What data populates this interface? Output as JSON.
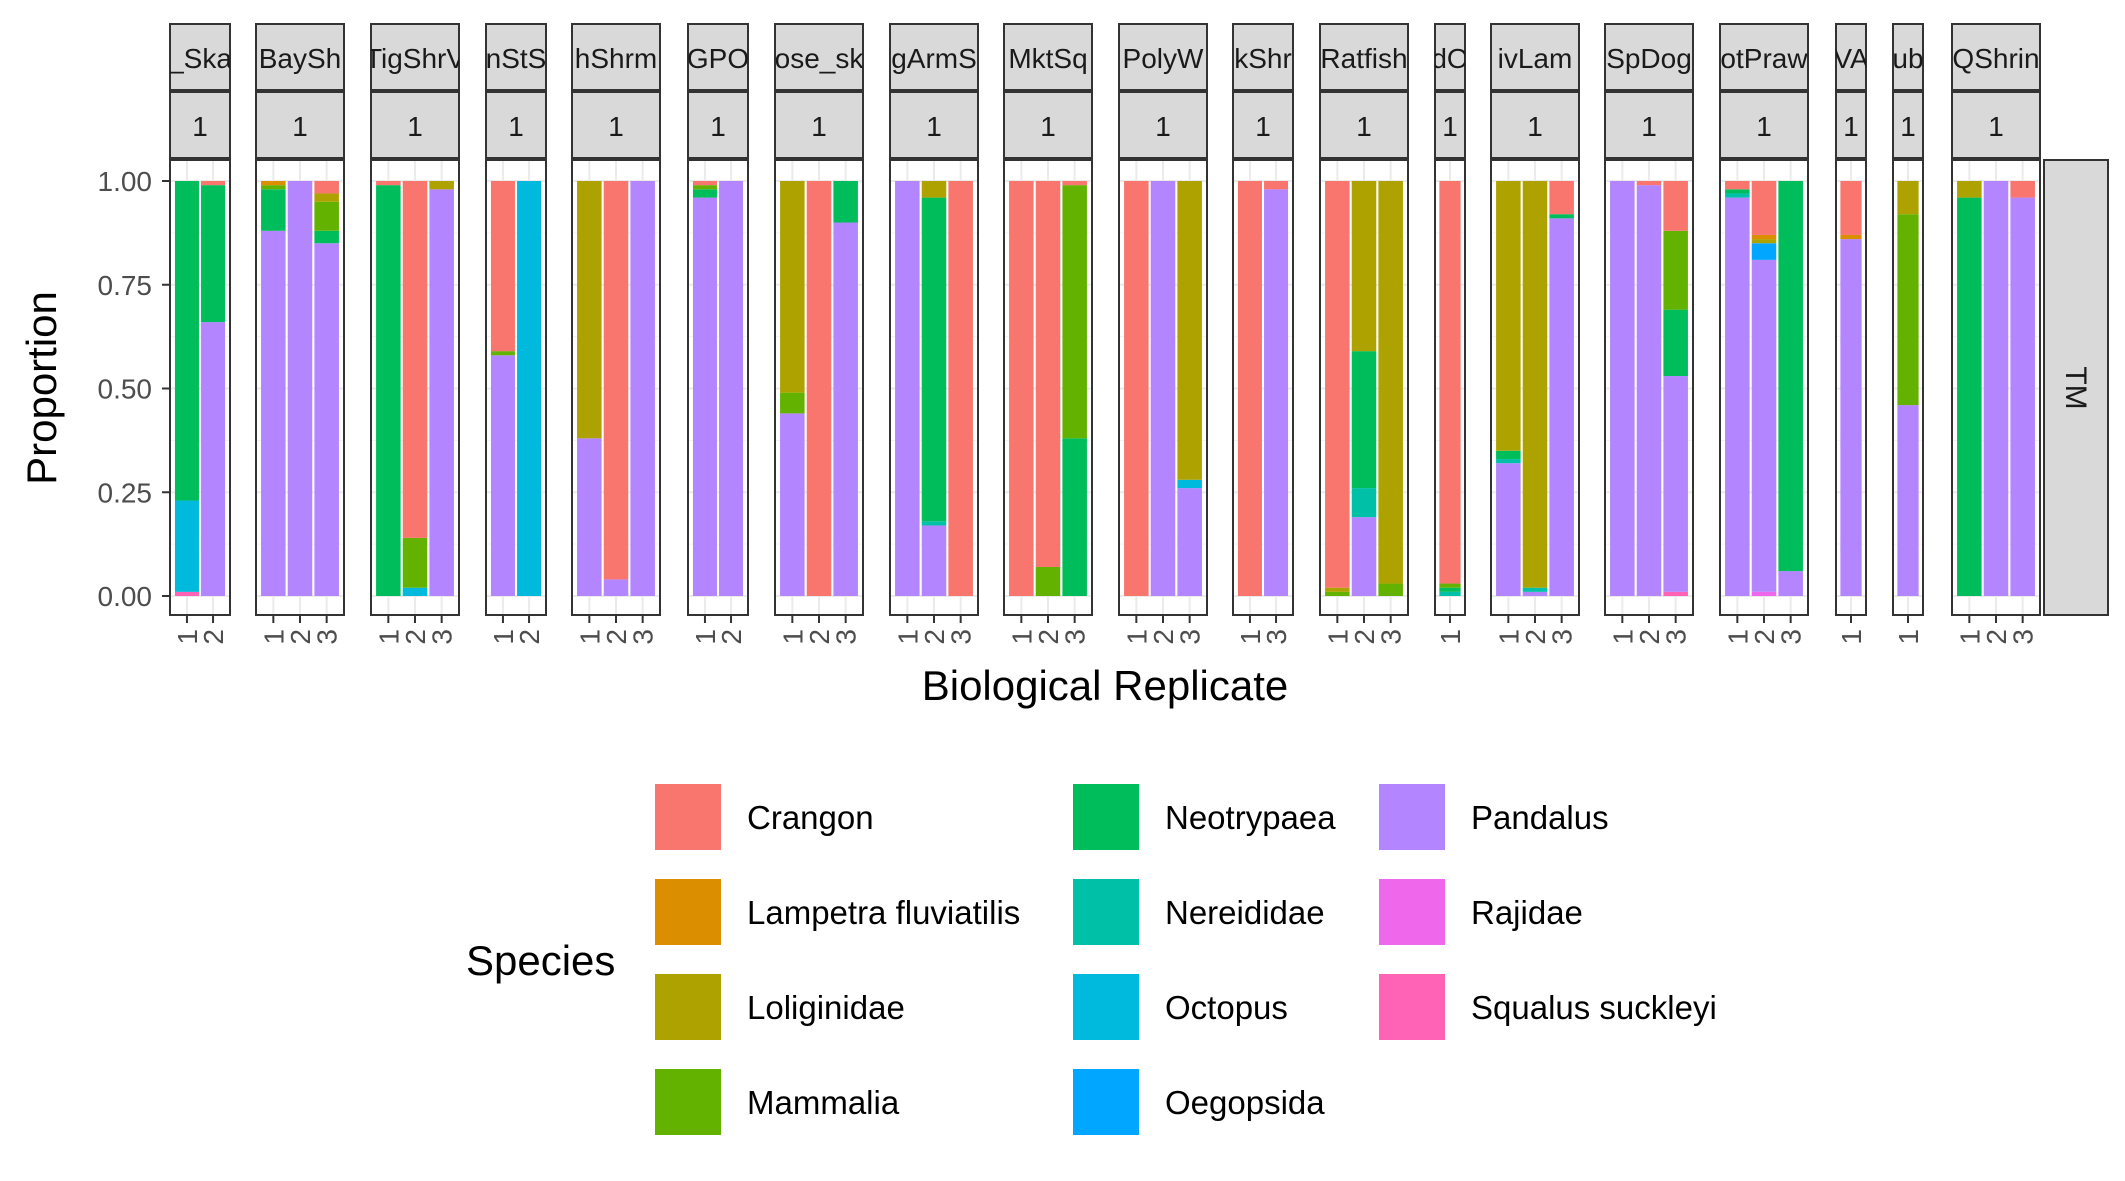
{
  "chart_data": {
    "type": "bar",
    "stacked": true,
    "xlabel": "Biological Replicate",
    "ylabel": "Proportion",
    "ylim": [
      0,
      1
    ],
    "yticks": [
      "0.00",
      "0.25",
      "0.50",
      "0.75",
      "1.00"
    ],
    "facet_row_label": "TM",
    "legend": {
      "title": "Species",
      "position": "bottom",
      "entries": [
        {
          "name": "Crangon",
          "color": "#F8766D"
        },
        {
          "name": "Lampetra fluviatilis",
          "color": "#DB8E00"
        },
        {
          "name": "Loliginidae",
          "color": "#AEA200"
        },
        {
          "name": "Mammalia",
          "color": "#64B200"
        },
        {
          "name": "Neotrypaea",
          "color": "#00BD5C"
        },
        {
          "name": "Nereididae",
          "color": "#00C1A7"
        },
        {
          "name": "Octopus",
          "color": "#00BADE"
        },
        {
          "name": "Oegopsida",
          "color": "#00A6FF"
        },
        {
          "name": "Pandalus",
          "color": "#B385FF"
        },
        {
          "name": "Rajidae",
          "color": "#EF67EB"
        },
        {
          "name": "Squalus suckleyi",
          "color": "#FF63B6"
        }
      ]
    },
    "stack_order_bottom_to_top": [
      "Squalus suckleyi",
      "Rajidae",
      "Pandalus",
      "Oegopsida",
      "Octopus",
      "Nereididae",
      "Neotrypaea",
      "Mammalia",
      "Loliginidae",
      "Lampetra fluviatilis",
      "Crangon"
    ],
    "facets": [
      {
        "label": "_Ska",
        "sublabel": "1",
        "replicates": [
          "1",
          "2"
        ],
        "bars": [
          {
            "Squalus suckleyi": 0.01,
            "Octopus": 0.22,
            "Neotrypaea": 0.77
          },
          {
            "Pandalus": 0.66,
            "Neotrypaea": 0.33,
            "Crangon": 0.01
          }
        ]
      },
      {
        "label": "BaySh",
        "sublabel": "1",
        "replicates": [
          "1",
          "2",
          "3"
        ],
        "bars": [
          {
            "Pandalus": 0.88,
            "Neotrypaea": 0.1,
            "Mammalia": 0.01,
            "Lampetra fluviatilis": 0.01
          },
          {
            "Pandalus": 1.0
          },
          {
            "Pandalus": 0.85,
            "Neotrypaea": 0.03,
            "Mammalia": 0.07,
            "Loliginidae": 0.02,
            "Crangon": 0.03
          }
        ]
      },
      {
        "label": "TigShrV",
        "sublabel": "1",
        "replicates": [
          "1",
          "2",
          "3"
        ],
        "bars": [
          {
            "Neotrypaea": 0.99,
            "Crangon": 0.01
          },
          {
            "Octopus": 0.02,
            "Mammalia": 0.12,
            "Crangon": 0.86
          },
          {
            "Pandalus": 0.98,
            "Loliginidae": 0.02
          }
        ]
      },
      {
        "label": "nStS",
        "sublabel": "1",
        "replicates": [
          "1",
          "2"
        ],
        "bars": [
          {
            "Pandalus": 0.58,
            "Mammalia": 0.01,
            "Crangon": 0.41
          },
          {
            "Octopus": 1.0
          }
        ]
      },
      {
        "label": "hShrm",
        "sublabel": "1",
        "replicates": [
          "1",
          "2",
          "3"
        ],
        "bars": [
          {
            "Pandalus": 0.38,
            "Loliginidae": 0.62
          },
          {
            "Pandalus": 0.04,
            "Crangon": 0.96
          },
          {
            "Pandalus": 1.0
          }
        ]
      },
      {
        "label": "GPO",
        "sublabel": "1",
        "replicates": [
          "1",
          "2"
        ],
        "bars": [
          {
            "Pandalus": 0.96,
            "Neotrypaea": 0.02,
            "Mammalia": 0.01,
            "Crangon": 0.01
          },
          {
            "Pandalus": 1.0
          }
        ]
      },
      {
        "label": "ose_sk",
        "sublabel": "1",
        "replicates": [
          "1",
          "2",
          "3"
        ],
        "bars": [
          {
            "Pandalus": 0.44,
            "Mammalia": 0.05,
            "Loliginidae": 0.51
          },
          {
            "Crangon": 1.0
          },
          {
            "Pandalus": 0.9,
            "Neotrypaea": 0.1
          }
        ]
      },
      {
        "label": "gArmS",
        "sublabel": "1",
        "replicates": [
          "1",
          "2",
          "3"
        ],
        "bars": [
          {
            "Pandalus": 1.0
          },
          {
            "Pandalus": 0.17,
            "Nereididae": 0.01,
            "Neotrypaea": 0.78,
            "Loliginidae": 0.04
          },
          {
            "Crangon": 1.0
          }
        ]
      },
      {
        "label": "MktSq",
        "sublabel": "1",
        "replicates": [
          "1",
          "2",
          "3"
        ],
        "bars": [
          {
            "Crangon": 1.0
          },
          {
            "Mammalia": 0.07,
            "Crangon": 0.93
          },
          {
            "Neotrypaea": 0.38,
            "Mammalia": 0.61,
            "Crangon": 0.01
          }
        ]
      },
      {
        "label": "PolyW",
        "sublabel": "1",
        "replicates": [
          "1",
          "2",
          "3"
        ],
        "bars": [
          {
            "Crangon": 1.0
          },
          {
            "Pandalus": 1.0
          },
          {
            "Pandalus": 0.26,
            "Octopus": 0.02,
            "Loliginidae": 0.72
          }
        ]
      },
      {
        "label": "kShr",
        "sublabel": "1",
        "replicates": [
          "1",
          "3"
        ],
        "bars": [
          {
            "Crangon": 1.0
          },
          {
            "Pandalus": 0.98,
            "Crangon": 0.02
          }
        ]
      },
      {
        "label": "Ratfish",
        "sublabel": "1",
        "replicates": [
          "1",
          "2",
          "3"
        ],
        "bars": [
          {
            "Mammalia": 0.01,
            "Loliginidae": 0.01,
            "Crangon": 0.98
          },
          {
            "Pandalus": 0.19,
            "Nereididae": 0.07,
            "Neotrypaea": 0.33,
            "Loliginidae": 0.41
          },
          {
            "Mammalia": 0.03,
            "Loliginidae": 0.97
          }
        ]
      },
      {
        "label": "dO",
        "sublabel": "1",
        "replicates": [
          "1"
        ],
        "bars": [
          {
            "Nereididae": 0.01,
            "Neotrypaea": 0.01,
            "Mammalia": 0.01,
            "Crangon": 0.97
          }
        ]
      },
      {
        "label": "ivLam",
        "sublabel": "1",
        "replicates": [
          "1",
          "2",
          "3"
        ],
        "bars": [
          {
            "Pandalus": 0.32,
            "Nereididae": 0.01,
            "Neotrypaea": 0.02,
            "Loliginidae": 0.65
          },
          {
            "Pandalus": 0.01,
            "Nereididae": 0.01,
            "Loliginidae": 0.98
          },
          {
            "Pandalus": 0.91,
            "Neotrypaea": 0.01,
            "Crangon": 0.08
          }
        ]
      },
      {
        "label": "SpDog",
        "sublabel": "1",
        "replicates": [
          "1",
          "2",
          "3"
        ],
        "bars": [
          {
            "Pandalus": 1.0
          },
          {
            "Pandalus": 0.99,
            "Crangon": 0.01
          },
          {
            "Squalus suckleyi": 0.01,
            "Pandalus": 0.52,
            "Neotrypaea": 0.16,
            "Mammalia": 0.19,
            "Crangon": 0.12
          }
        ]
      },
      {
        "label": "otPraw",
        "sublabel": "1",
        "replicates": [
          "1",
          "2",
          "3"
        ],
        "bars": [
          {
            "Pandalus": 0.96,
            "Nereididae": 0.01,
            "Neotrypaea": 0.01,
            "Crangon": 0.02
          },
          {
            "Rajidae": 0.01,
            "Pandalus": 0.8,
            "Oegopsida": 0.04,
            "Lampetra fluviatilis": 0.01,
            "Loliginidae": 0.01,
            "Crangon": 0.13
          },
          {
            "Pandalus": 0.06,
            "Neotrypaea": 0.94
          }
        ]
      },
      {
        "label": "VA",
        "sublabel": "1",
        "replicates": [
          "1"
        ],
        "bars": [
          {
            "Pandalus": 0.86,
            "Lampetra fluviatilis": 0.01,
            "Crangon": 0.13
          }
        ]
      },
      {
        "label": "ub",
        "sublabel": "1",
        "replicates": [
          "1"
        ],
        "bars": [
          {
            "Pandalus": 0.46,
            "Mammalia": 0.46,
            "Loliginidae": 0.08
          }
        ]
      },
      {
        "label": "QShrin",
        "sublabel": "1",
        "replicates": [
          "1",
          "2",
          "3"
        ],
        "bars": [
          {
            "Neotrypaea": 0.96,
            "Loliginidae": 0.04
          },
          {
            "Pandalus": 1.0
          },
          {
            "Pandalus": 0.96,
            "Crangon": 0.04
          }
        ]
      }
    ]
  }
}
